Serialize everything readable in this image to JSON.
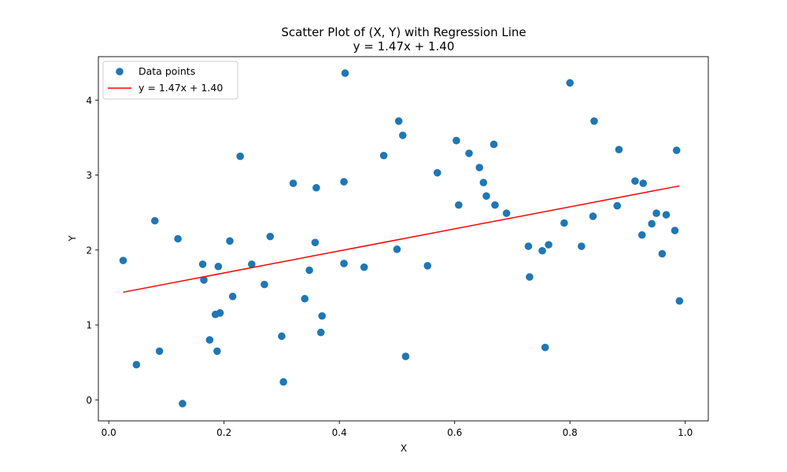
{
  "chart_data": {
    "type": "scatter",
    "title": "Scatter Plot of (X, Y) with Regression Line",
    "subtitle": "y = 1.47x + 1.40",
    "xlabel": "X",
    "ylabel": "Y",
    "xlim": [
      -0.018,
      1.04
    ],
    "ylim": [
      -0.28,
      4.58
    ],
    "xticks": [
      0.0,
      0.2,
      0.4,
      0.6,
      0.8,
      1.0
    ],
    "xtick_labels": [
      "0.0",
      "0.2",
      "0.4",
      "0.6",
      "0.8",
      "1.0"
    ],
    "yticks": [
      0,
      1,
      2,
      3,
      4
    ],
    "ytick_labels": [
      "0",
      "1",
      "2",
      "3",
      "4"
    ],
    "grid": false,
    "legend": {
      "position": "upper-left",
      "entries": [
        "Data points",
        "y = 1.47x + 1.40"
      ]
    },
    "colors": {
      "points": "#1f77b4",
      "line": "#ff0000"
    },
    "series": [
      {
        "name": "Data points",
        "kind": "scatter",
        "x": [
          0.025,
          0.048,
          0.08,
          0.088,
          0.12,
          0.128,
          0.163,
          0.165,
          0.175,
          0.185,
          0.188,
          0.19,
          0.193,
          0.21,
          0.215,
          0.228,
          0.248,
          0.27,
          0.28,
          0.3,
          0.303,
          0.32,
          0.34,
          0.348,
          0.358,
          0.36,
          0.368,
          0.37,
          0.408,
          0.408,
          0.41,
          0.443,
          0.477,
          0.5,
          0.503,
          0.51,
          0.515,
          0.553,
          0.57,
          0.603,
          0.607,
          0.625,
          0.643,
          0.65,
          0.655,
          0.668,
          0.67,
          0.69,
          0.728,
          0.73,
          0.752,
          0.757,
          0.763,
          0.79,
          0.8,
          0.82,
          0.84,
          0.842,
          0.882,
          0.885,
          0.913,
          0.925,
          0.927,
          0.942,
          0.95,
          0.96,
          0.967,
          0.982,
          0.985,
          0.99
        ],
        "y": [
          1.86,
          0.47,
          2.39,
          0.65,
          2.15,
          -0.05,
          1.81,
          1.6,
          0.8,
          1.14,
          0.65,
          1.78,
          1.16,
          2.12,
          1.38,
          3.25,
          1.81,
          1.54,
          2.18,
          0.85,
          0.24,
          2.89,
          1.35,
          1.73,
          2.1,
          2.83,
          0.9,
          1.12,
          2.91,
          1.82,
          4.36,
          1.77,
          3.26,
          2.01,
          3.72,
          3.53,
          0.58,
          1.79,
          3.03,
          3.46,
          2.6,
          3.29,
          3.1,
          2.9,
          2.72,
          3.41,
          2.6,
          2.49,
          2.05,
          1.64,
          1.99,
          0.7,
          2.07,
          2.36,
          4.23,
          2.05,
          2.45,
          3.72,
          2.59,
          3.34,
          2.92,
          2.2,
          2.89,
          2.35,
          2.49,
          1.95,
          2.47,
          2.26,
          3.33,
          1.32
        ]
      },
      {
        "name": "y = 1.47x + 1.40",
        "kind": "line",
        "slope": 1.47,
        "intercept": 1.4,
        "x": [
          0.025,
          0.99
        ]
      }
    ]
  }
}
